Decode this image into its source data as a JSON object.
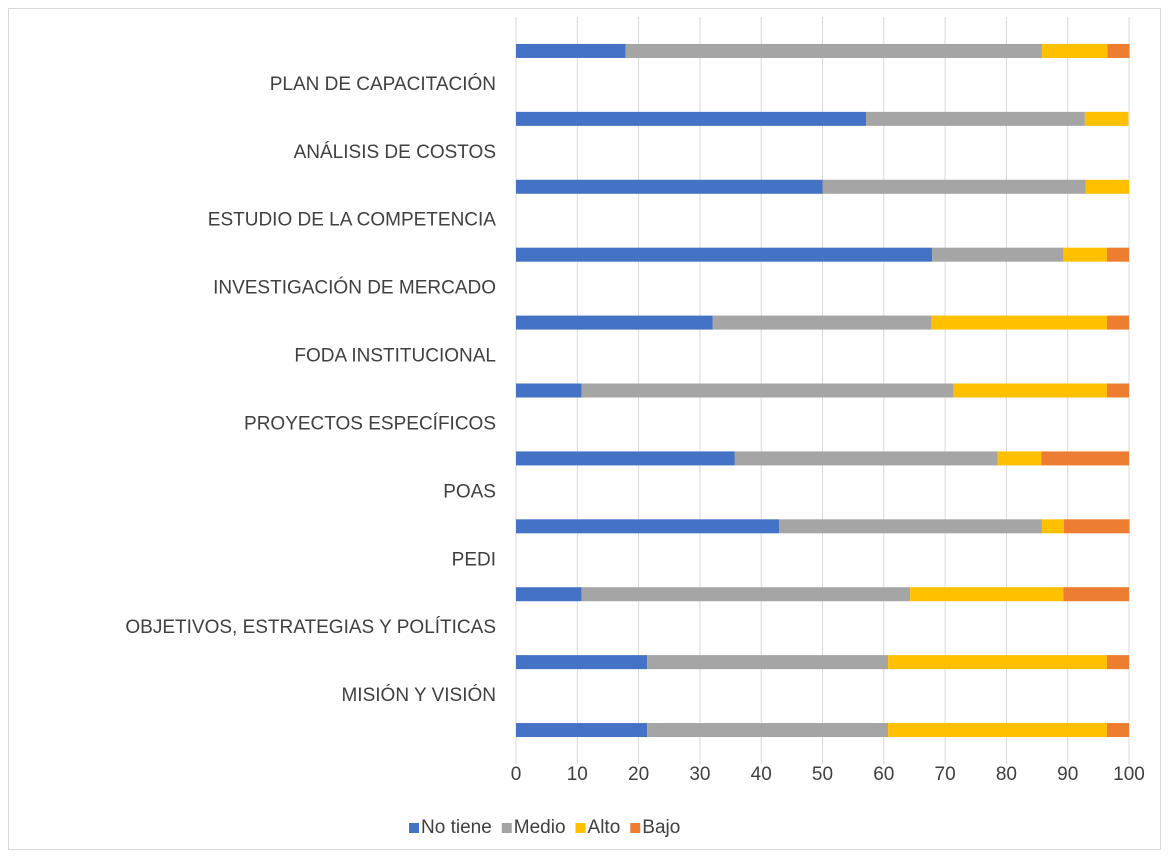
{
  "chart_data": {
    "type": "stacked-bar-horizontal",
    "categories": [
      null,
      "PLAN DE CAPACITACIÓN",
      "ANÁLISIS DE COSTOS",
      "ESTUDIO DE LA COMPETENCIA",
      "INVESTIGACIÓN DE MERCADO",
      "FODA INSTITUCIONAL",
      "PROYECTOS ESPECÍFICOS",
      "POAS",
      "PEDI",
      "OBJETIVOS, ESTRATEGIAS Y POLÍTICAS",
      "MISIÓN Y VISIÓN"
    ],
    "series": [
      {
        "name": "No tiene",
        "color": "#4472c4",
        "values": [
          17.9,
          57.1,
          50,
          67.9,
          32.1,
          10.7,
          35.7,
          42.9,
          10.7,
          21.4,
          21.4
        ]
      },
      {
        "name": "Medio",
        "color": "#a5a5a5",
        "values": [
          67.9,
          35.7,
          42.9,
          21.4,
          35.7,
          60.7,
          42.9,
          42.9,
          53.6,
          39.3,
          39.3
        ]
      },
      {
        "name": "Alto",
        "color": "#ffc000",
        "values": [
          10.7,
          7.1,
          7.1,
          7.1,
          28.6,
          25,
          7.1,
          3.6,
          25,
          35.7,
          35.7
        ]
      },
      {
        "name": "Bajo",
        "color": "#ed7d31",
        "values": [
          3.6,
          0,
          0,
          3.6,
          3.6,
          3.6,
          14.3,
          10.7,
          10.7,
          3.6,
          3.6
        ]
      }
    ],
    "xlim": [
      0,
      100
    ],
    "xticks": [
      0,
      10,
      20,
      30,
      40,
      50,
      60,
      70,
      80,
      90,
      100
    ],
    "grid": true,
    "legend": "bottom"
  }
}
